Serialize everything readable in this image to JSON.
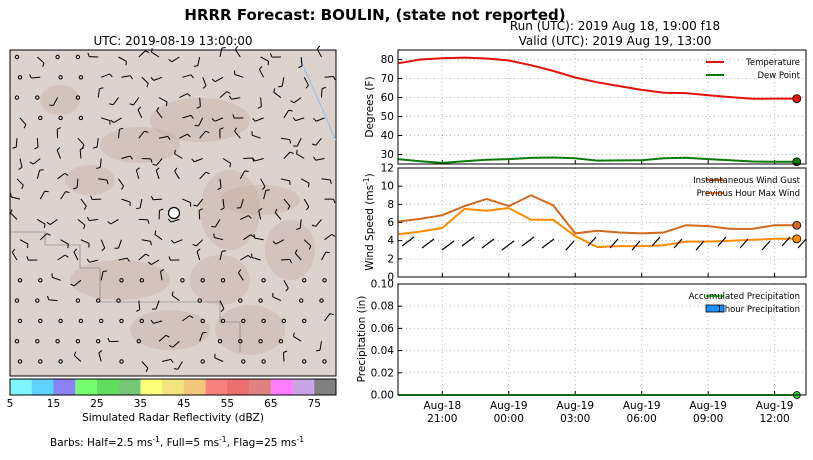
{
  "figure": {
    "title": "HRRR Forecast: BOULIN, (state not reported)",
    "run_label": "Run (UTC): 2019 Aug 18, 19:00 f18",
    "valid_label": "Valid (UTC): 2019 Aug 19, 13:00"
  },
  "map": {
    "title": "UTC: 2019-08-19 13:00:00",
    "colorbar": {
      "label": "Simulated Radar Reflectivity (dBZ)",
      "ticks": [
        "5",
        "15",
        "25",
        "35",
        "45",
        "55",
        "65",
        "75"
      ],
      "colors": [
        "#7df7ff",
        "#5fd3ff",
        "#8c82f7",
        "#75ff6e",
        "#5fde5f",
        "#76c878",
        "#fbff78",
        "#f3e27d",
        "#f3c67a",
        "#fb7f7f",
        "#e96f70",
        "#e08380",
        "#ff7bff",
        "#c8a6e6",
        "#808080"
      ]
    },
    "barb_note_prefix": "Barbs: Half=2.5 ms",
    "barb_note_mid1": ", Full=5 ms",
    "barb_note_mid2": ", Flag=25 ms",
    "barb_note_exp": "-1",
    "colors": {
      "land": "#dcd3cf",
      "marker": "#000000"
    }
  },
  "chart_data": [
    {
      "type": "line",
      "panel": "temperature",
      "x": [
        "2019-08-18 19:00",
        "2019-08-18 20:00",
        "2019-08-18 21:00",
        "2019-08-18 22:00",
        "2019-08-18 23:00",
        "2019-08-19 00:00",
        "2019-08-19 01:00",
        "2019-08-19 02:00",
        "2019-08-19 03:00",
        "2019-08-19 04:00",
        "2019-08-19 05:00",
        "2019-08-19 06:00",
        "2019-08-19 07:00",
        "2019-08-19 08:00",
        "2019-08-19 09:00",
        "2019-08-19 10:00",
        "2019-08-19 11:00",
        "2019-08-19 12:00",
        "2019-08-19 13:00"
      ],
      "ylabel": "Degrees (F)",
      "ylim": [
        25,
        85
      ],
      "yticks": [
        "30",
        "40",
        "50",
        "60",
        "70",
        "80"
      ],
      "grid": true,
      "legend": "top-right",
      "series": [
        {
          "name": "Temperature",
          "color": "#e3120b",
          "values": [
            78,
            80,
            80.7,
            81,
            80.5,
            79.5,
            77,
            74,
            70.5,
            68,
            66,
            64,
            62.5,
            62.3,
            61.2,
            60.2,
            59.3,
            59.4,
            59.4
          ]
        },
        {
          "name": "Dew Point",
          "color": "#0a7a0a",
          "values": [
            27.6,
            26.5,
            25.6,
            26.5,
            27.2,
            27.6,
            28.2,
            28.4,
            28,
            26.8,
            26.9,
            27,
            28,
            28.3,
            27.6,
            27,
            26.3,
            26.2,
            26.2
          ]
        }
      ]
    },
    {
      "type": "line",
      "panel": "wind",
      "x": [
        "2019-08-18 19:00",
        "2019-08-18 20:00",
        "2019-08-18 21:00",
        "2019-08-18 22:00",
        "2019-08-18 23:00",
        "2019-08-19 00:00",
        "2019-08-19 01:00",
        "2019-08-19 02:00",
        "2019-08-19 03:00",
        "2019-08-19 04:00",
        "2019-08-19 05:00",
        "2019-08-19 06:00",
        "2019-08-19 07:00",
        "2019-08-19 08:00",
        "2019-08-19 09:00",
        "2019-08-19 10:00",
        "2019-08-19 11:00",
        "2019-08-19 12:00",
        "2019-08-19 13:00"
      ],
      "ylabel": "Wind Speed (ms",
      "ylabel_exp": "-1",
      "ylabel_close": ")",
      "ylim": [
        0,
        12
      ],
      "yticks": [
        "0",
        "2",
        "4",
        "6",
        "8",
        "10",
        "12"
      ],
      "grid": true,
      "legend": "top-right",
      "series": [
        {
          "name": "Instantaneous Wind Gust",
          "color": "#d2691e",
          "values": [
            6.1,
            6.4,
            6.8,
            7.8,
            8.6,
            7.8,
            9,
            7.9,
            4.8,
            5.1,
            4.9,
            4.8,
            4.9,
            5.7,
            5.6,
            5.3,
            5.3,
            5.7,
            5.7
          ]
        },
        {
          "name": "Previous Hour Max Wind",
          "color": "#ff8c00",
          "values": [
            4.7,
            5,
            5.4,
            7.5,
            7.3,
            7.6,
            6.3,
            6.3,
            4.5,
            3.3,
            3.4,
            3.4,
            3.5,
            3.9,
            3.9,
            4.0,
            4.1,
            4.2,
            4.2
          ]
        }
      ]
    },
    {
      "type": "bar",
      "panel": "precipitation",
      "x": [
        "2019-08-18 19:00",
        "2019-08-19 13:00"
      ],
      "xticks": [
        [
          "Aug-18",
          "21:00"
        ],
        [
          "Aug-19",
          "00:00"
        ],
        [
          "Aug-19",
          "03:00"
        ],
        [
          "Aug-19",
          "06:00"
        ],
        [
          "Aug-19",
          "09:00"
        ],
        [
          "Aug-19",
          "12:00"
        ]
      ],
      "ylabel": "Precipitation (in)",
      "ylim": [
        0,
        0.1
      ],
      "yticks": [
        "0.00",
        "0.02",
        "0.04",
        "0.06",
        "0.08",
        "0.10"
      ],
      "grid": true,
      "legend": "top-right",
      "series": [
        {
          "name": "Accumulated Precipitation",
          "color": "#32cd32",
          "values": [
            0,
            0
          ]
        },
        {
          "name": "1 hour Precipitation",
          "color": "#1e90ff",
          "values": [
            0,
            0
          ]
        }
      ]
    }
  ]
}
